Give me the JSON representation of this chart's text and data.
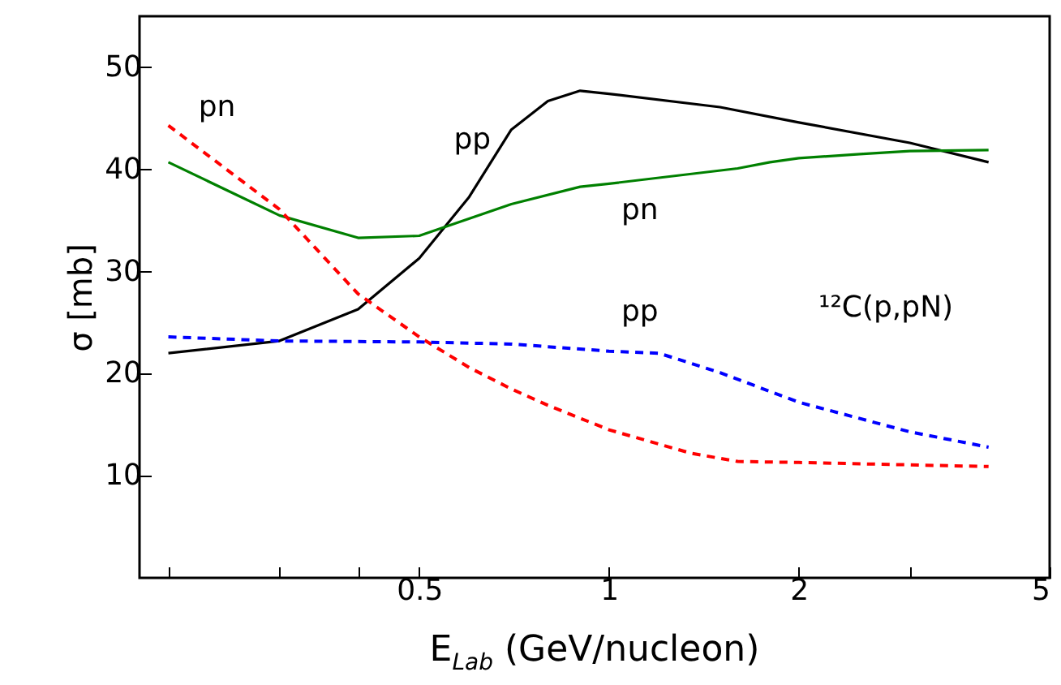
{
  "chart_data": {
    "type": "line",
    "xlabel": "E$_{Lab}$ (GeV/nucleon)",
    "ylabel": "σ [mb]",
    "log": "x",
    "grid": false,
    "xlim": [
      0.18,
      5
    ],
    "xticks": [
      {
        "value": 0.2,
        "label": null
      },
      {
        "value": 0.3,
        "label": null
      },
      {
        "value": 0.4,
        "label": null
      },
      {
        "value": 0.5,
        "label": "0.5"
      },
      1,
      2,
      {
        "value": 3,
        "label": null
      },
      5
    ],
    "ylim": [
      0,
      55
    ],
    "yticks": [
      10,
      20,
      30,
      40,
      50
    ],
    "series": [
      {
        "name": "pp",
        "color": "#000000",
        "line_style": "solid",
        "x": [
          0.2,
          0.3,
          0.4,
          0.5,
          0.6,
          0.7,
          0.8,
          0.9,
          1,
          1.5,
          2,
          3,
          4
        ],
        "values": [
          22.0,
          23.2,
          26.3,
          31.3,
          37.3,
          43.9,
          46.7,
          47.7,
          47.4,
          46.1,
          44.6,
          42.6,
          40.7
        ]
      },
      {
        "name": "pn",
        "color": "#008000",
        "line_style": "solid",
        "x": [
          0.2,
          0.3,
          0.4,
          0.5,
          0.7,
          0.9,
          1,
          1.6,
          1.8,
          2,
          2.5,
          3,
          4
        ],
        "values": [
          40.7,
          35.5,
          33.3,
          33.5,
          36.6,
          38.3,
          38.6,
          40.1,
          40.7,
          41.1,
          41.5,
          41.8,
          41.9
        ]
      },
      {
        "name": "pn",
        "color": "#ff0000",
        "line_style": "dashed",
        "x": [
          0.2,
          0.3,
          0.4,
          0.5,
          0.6,
          0.7,
          0.8,
          1,
          1.35,
          1.6,
          2,
          4
        ],
        "values": [
          44.3,
          36.1,
          27.8,
          23.6,
          20.6,
          18.5,
          16.9,
          14.5,
          12.2,
          11.4,
          11.3,
          10.9
        ]
      },
      {
        "name": "pp",
        "color": "#0000ff",
        "line_style": "dashed",
        "x": [
          0.2,
          0.3,
          0.5,
          0.7,
          1,
          1.2,
          1.5,
          2,
          3,
          4
        ],
        "values": [
          23.6,
          23.2,
          23.1,
          22.9,
          22.2,
          22.0,
          20.1,
          17.2,
          14.3,
          12.8
        ]
      }
    ],
    "annotations": [
      "¹²C(p,pN)"
    ]
  }
}
